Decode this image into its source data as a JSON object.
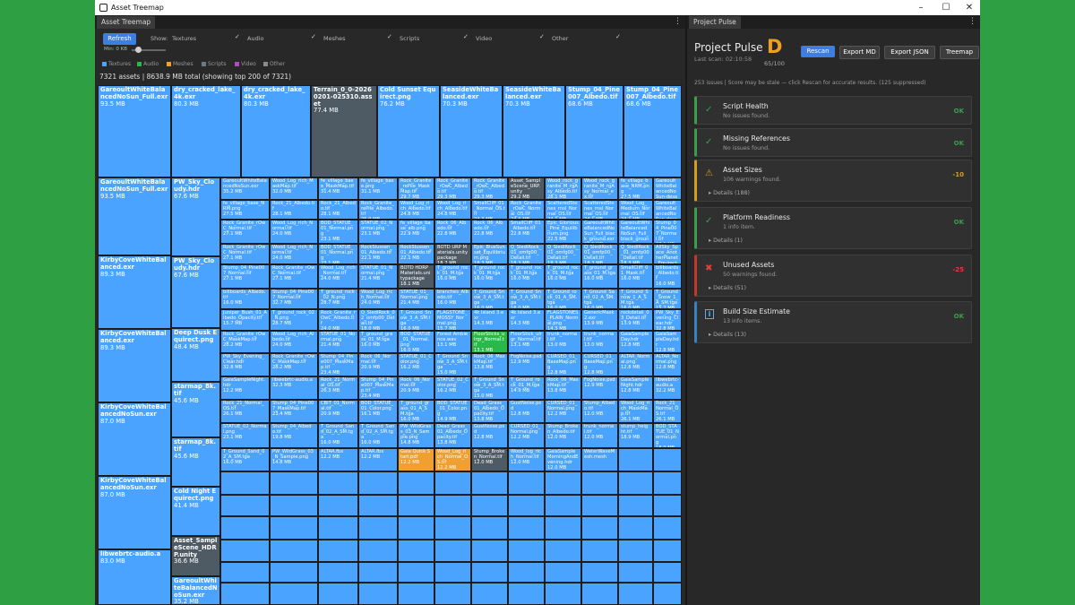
{
  "window": {
    "title": "Asset Treemap"
  },
  "left": {
    "tab": "Asset Treemap",
    "refresh": "Refresh",
    "show_label": "Show:",
    "filters": [
      "Textures",
      "Audio",
      "Meshes",
      "Scripts",
      "Video",
      "Other"
    ],
    "min_label": "Min: 0 KB",
    "legend": [
      {
        "name": "Textures",
        "color": "#4aa3ff"
      },
      {
        "name": "Audio",
        "color": "#2bb84a"
      },
      {
        "name": "Meshes",
        "color": "#f0a030"
      },
      {
        "name": "Scripts",
        "color": "#6b7a8a"
      },
      {
        "name": "Video",
        "color": "#b04ac0"
      },
      {
        "name": "Other",
        "color": "#8a8a8a"
      }
    ],
    "summary": "7321 assets | 8638.9 MB total (showing top 200 of 7321)"
  },
  "colors": {
    "tex": "#4aa3ff",
    "aud": "#2bb84a",
    "mesh": "#f0a030",
    "script": "#4e5a64"
  },
  "treemap": {
    "big": [
      [
        "GareoultWhiteBalancedNoSun_Full.exr",
        "93.5 MB"
      ],
      [
        "dry_cracked_lake_4k.exr",
        "80.3 MB"
      ],
      [
        "dry_cracked_lake_4k.exr",
        "80.3 MB"
      ],
      [
        "Terrain_0_0-20260201-025310.asset",
        "77.4 MB"
      ],
      [
        "Cold Sunset Equirect.png",
        "76.2 MB"
      ],
      [
        "SeasideWhiteBalanced.exr",
        "70.3 MB"
      ],
      [
        "SeasideWhiteBalanced.exr",
        "70.3 MB"
      ],
      [
        "Stump_04_Pine007_Albedo.tif",
        "68.6 MB"
      ],
      [
        "Stump_04_Pine007_Albedo.tif",
        "68.6 MB"
      ],
      [
        "GareoultWhiteBalancedNoSun_Full.exr",
        "93.5 MB"
      ],
      [
        "PW_Sky_Cloudy.hdr",
        "67.6 MB"
      ],
      [
        "KirbyCoveWhiteBalanced.exr",
        "89.3 MB"
      ],
      [
        "PW_Sky_Cloudy.hdr",
        "67.6 MB"
      ],
      [
        "KirbyCoveWhiteBalanced.exr",
        "89.3 MB"
      ],
      [
        "Deep Dusk Equirect.png",
        "48.4 MB"
      ],
      [
        "starmap_8k.tif",
        "45.6 MB"
      ],
      [
        "KirbyCoveWhiteBalancedNoSun.exr",
        "87.0 MB"
      ],
      [
        "starmap_8k.tif",
        "45.6 MB"
      ],
      [
        "KirbyCoveWhiteBalancedNoSun.exr",
        "87.0 MB"
      ],
      [
        "Cold Night Equirect.png",
        "41.4 MB"
      ],
      [
        "libwebrtc-audio.a",
        "83.0 MB"
      ],
      [
        "Asset_SampleScene_HDRP.unity",
        "36.6 MB"
      ],
      [
        "GareoultWhiteBalancedNoSun.exr",
        "35.2 MB"
      ]
    ],
    "small": [
      [
        "GareoultWhiteBalancedNoSun.exr",
        "35.2 MB"
      ],
      [
        "Wood_Log_rich_MaskMap.tif",
        "32.0 MB"
      ],
      [
        "fe_village_base_MaskMap.tif",
        "31.4 MB"
      ],
      [
        "fe_village_base.png",
        "31.1 MB"
      ],
      [
        "Rock_Granite_rePile_MaskMap.tif",
        "29.7 MB"
      ],
      [
        "Rock_Granite_rOwC_Albedo.tif",
        "29.3 MB"
      ],
      [
        "Rock_Granite_rOwC_Albedo.tif",
        "29.3 MB"
      ],
      [
        "Asset_SampleScene_URP.unity",
        "29.2 MB"
      ],
      [
        "Wood_rock_granite_M_rgAsy_Albedo.tif",
        "28.1 MB"
      ],
      [
        "Wood_rock_granite_M_rgAsy_Normal_ex.tif",
        "27.9 MB"
      ],
      [
        "fe_village_base_NRM.png",
        "27.5 MB"
      ],
      [
        "GareoultWhiteBalancedNoSun-desaturated.exr",
        "34.5 MB"
      ],
      [
        "fe_village_base_NRM.png",
        "27.5 MB"
      ],
      [
        "Rock_21_Albedo.tif",
        "28.1 MB"
      ],
      [
        "Rock_21_Albedo.tif",
        "28.1 MB"
      ],
      [
        "Rock_Granite_rePile_Albedo.tif",
        "25.9 MB"
      ],
      [
        "Wood_Log_rich_Albedo.tif",
        "24.8 MB"
      ],
      [
        "Wood_Log_rich_Albedo.tif",
        "24.8 MB"
      ],
      [
        "SmallCliff_01_Normal_OS.tif",
        "24.3 MB"
      ],
      [
        "Rock_Granite_rOwC_Normal_OS.tif",
        "24.3 MB"
      ],
      [
        "ScatteredStones_rnsl_Normal_OS.tif",
        "24.1 MB"
      ],
      [
        "ScatteredStones_rnsl_Normal_OS.tif",
        "24.1 MB"
      ],
      [
        "Wood_Log_Medium_Normal_OS.tif",
        "24.1 MB"
      ],
      [
        "GareoultWhiteBalancedNoSun-desaturated.exr",
        "34.5 MB"
      ],
      [
        "Rock_Granite_rOwC_Normal.tif",
        "27.1 MB"
      ],
      [
        "Wood_Log_rich_Normal.tif",
        "24.0 MB"
      ],
      [
        "BOD_STATUE_01_Normal.png",
        "23.1 MB"
      ],
      [
        "STATUE_02_Normal.png",
        "23.1 MB"
      ],
      [
        "fe_village_base_alb.png",
        "22.9 MB"
      ],
      [
        "Rock_06_Albedo.tif",
        "22.8 MB"
      ],
      [
        "Rock_06_Albedo.tif",
        "22.8 MB"
      ],
      [
        "SmallCliff_01_Albedo.tif",
        "22.8 MB"
      ],
      [
        "Epic_Glorious_Pine_Equilibrium.png",
        "22.5 MB"
      ],
      [
        "GareoultWhiteBalancedNoSun_Full_black_ground.exr",
        "22.5 MB"
      ],
      [
        "GareoultWhiteBalancedNoSun_Full_black_ground.exr",
        "22.5 MB"
      ],
      [
        "Stump_04_Pine007_Normal.tif",
        "27.1 MB"
      ],
      [
        "Rock_Granite_rOwC_Normal.tif",
        "27.1 MB"
      ],
      [
        "Wood_Log_rich_Normal.tif",
        "24.0 MB"
      ],
      [
        "BOD_STATUE_01_Normal.png",
        "23.1 MB"
      ],
      [
        "RockSlussen_01_Albedo.tif",
        "22.1 MB"
      ],
      [
        "RockSlussen_01_Albedo.tif",
        "22.1 MB"
      ],
      [
        "BOTD URP Materials.unitypackage",
        "18.7 MB"
      ],
      [
        "Epic_BlueSunset_Equilibrium.png",
        "18.3 MB"
      ],
      [
        "Q_SlediRock_01_omfg00_Detail.tif",
        "18.3 MB"
      ],
      [
        "Q_SlediRock_01_omfg00_Detail.tif",
        "18.3 MB"
      ],
      [
        "Q_SlediRock_01_omfp00_Detail.tif",
        "18.3 MB"
      ],
      [
        "Q_SlediRock_01_omfp00_Detail.tif",
        "18.3 MB"
      ],
      [
        "AllSky_Space_AnotherPlanet_Equirect.png",
        "18.3 MB"
      ],
      [
        "Stump_04_Pine007_Normal.tif",
        "27.1 MB"
      ],
      [
        "Rock_Granite_rOwC_Normal.tif",
        "27.1 MB"
      ],
      [
        "Wood_Log_rich_Normal.tif",
        "24.0 MB"
      ],
      [
        "STATUE_01_Normal.png",
        "21.4 MB"
      ],
      [
        "BOTD HDRP Materials.unitypackage",
        "18.1 MB"
      ],
      [
        "T_ground_rock_01_M.tga",
        "16.0 MB"
      ],
      [
        "T_ground_rock_01_M.tga",
        "16.0 MB"
      ],
      [
        "T_ground_rock_01_M.tga",
        "16.0 MB"
      ],
      [
        "T_ground_rock_01_M.tga",
        "16.0 MB"
      ],
      [
        "T_ground_grass_01_M.tga",
        "16.0 MB"
      ],
      [
        "SmallCliff_01_Mask.tif",
        "16.0 MB"
      ],
      [
        "billboards_Albedo.tif",
        "16.0 MB"
      ],
      [
        "billboards_Albedo.tif",
        "16.0 MB"
      ],
      [
        "Stump_04_Pine007_Normal.tif",
        "32.7 MB"
      ],
      [
        "T_ground_rock_02_N.png",
        "28.7 MB"
      ],
      [
        "Wood_Log_rich_Normal.tif",
        "24.0 MB"
      ],
      [
        "STATUE_01_Normal.png",
        "21.4 MB"
      ],
      [
        "branches_Albedo.tif",
        "16.0 MB"
      ],
      [
        "T_Ground_Snow_3_A_SM.tga",
        "16.0 MB"
      ],
      [
        "T_Ground_Snow_3_A_SM.tga",
        "16.0 MB"
      ],
      [
        "T_Ground_rock_01_A_SM.tga",
        "16.0 MB"
      ],
      [
        "T_Ground_Sand_02_A_SM.tga",
        "16.0 MB"
      ],
      [
        "T_Ground_Snow_1_A_SM.tga",
        "16.0 MB"
      ],
      [
        "T_Ground_Snow_1_A_SM.tga",
        "15.7 MB"
      ],
      [
        "Juniper_Bush_01_Albedo_Opacity.tif",
        "15.7 MB"
      ],
      [
        "T_ground_rock_02_N.png",
        "28.7 MB"
      ],
      [
        "Rock_Granite_rOwC_Albedo.tif",
        "24.0 MB"
      ],
      [
        "Q_SlediRock_02_omfp00_Detail.tif",
        "18.0 MB"
      ],
      [
        "T_Ground_Snow_3_A_SM.tga",
        "16.0 MB"
      ],
      [
        "FLAGSTONE_MOSSY_Normal.png",
        "15.7 MB"
      ],
      [
        "4k Island 3.exr",
        "14.3 MB"
      ],
      [
        "4k Island 3.exr",
        "14.3 MB"
      ],
      [
        "FLAGSTONES_PLAIN_Normal.png",
        "14.3 MB"
      ],
      [
        "GenericMask2.exr",
        "13.9 MB"
      ],
      [
        "rockdetail_03_Detail.tif",
        "13.9 MB"
      ],
      [
        "PW_Sky_Evening_Clear.hdr",
        "32.8 MB"
      ],
      [
        "Rock_Granite_rOwC_MaskMap.tif",
        "28.2 MB"
      ],
      [
        "Wood_Log_rich_Albedo.tif",
        "24.0 MB"
      ],
      [
        "STATUE_01_Normal.png",
        "21.4 MB"
      ],
      [
        "T_ground_grass_01_M.tga",
        "16.0 MB"
      ],
      [
        "BOD_STATUE_01_Normal.png",
        "16.0 MB"
      ],
      [
        "Forest Ambience.wav",
        "13.1 MB"
      ],
      [
        "FloorSticks_ulrgr_Normal.tif",
        "13.1 MB"
      ],
      [
        "FloorStick_ulrgr_Normal.tif",
        "13.1 MB"
      ],
      [
        "trunk_normal.tif",
        "13.0 MB"
      ],
      [
        "trunk_normal.tif",
        "13.0 MB"
      ],
      [
        "GaiaSampleDay.hdr",
        "12.8 MB"
      ],
      [
        "GaiaSampleDay.hdr",
        "12.8 MB"
      ],
      [
        "PW_Sky_Evening_Clear.hdr",
        "32.8 MB"
      ],
      [
        "Rock_Granite_rOwC_MaskMap.tif",
        "28.2 MB"
      ],
      [
        "Stump_04_Pine007_MaskMap.tif",
        "23.4 MB"
      ],
      [
        "Rock_06_Normal.tif",
        "20.9 MB"
      ],
      [
        "STATUE_01_Color.png",
        "16.2 MB"
      ],
      [
        "T_Ground_Snow_3_A_SM.tga",
        "15.0 MB"
      ],
      [
        "Rock_06_MaskMap.tif",
        "13.8 MB"
      ],
      [
        "FogNoise.psd",
        "12.9 MB"
      ],
      [
        "CURSED_01_BaseMap.png",
        "12.8 MB"
      ],
      [
        "CURSED_01_BaseMap.png",
        "12.8 MB"
      ],
      [
        "ALTAR_Normal.png",
        "12.8 MB"
      ],
      [
        "ALTAR_Normal.png",
        "12.8 MB"
      ],
      [
        "GaiaSampleNight.hdr",
        "12.2 MB"
      ],
      [
        "libwebrtc-audio.a",
        "32.3 MB"
      ],
      [
        "Rock_21_Normal_OS.tif",
        "26.3 MB"
      ],
      [
        "Stump_04_Pine007_MaskMap.tif",
        "23.4 MB"
      ],
      [
        "Rock_06_Normal.tif",
        "20.9 MB"
      ],
      [
        "STATUE_02_Color.png",
        "16.2 MB"
      ],
      [
        "T_Ground_Snow_3_A_SM.tga",
        "15.0 MB"
      ],
      [
        "T_Ground_rock_01_M.tga",
        "14.9 MB"
      ],
      [
        "Rock_06_MaskMap.tif",
        "13.8 MB"
      ],
      [
        "FogNoise.psd",
        "12.9 MB"
      ],
      [
        "GaiaSampleNight.hdr",
        "12.8 MB"
      ],
      [
        "libwebrtc-audio.a",
        "32.2 MB"
      ],
      [
        "Rock_21_Normal_OS.tif",
        "26.1 MB"
      ],
      [
        "Stump_04_Pine007_MaskMap.tif",
        "23.4 MB"
      ],
      [
        "CBIT_01_Normal.tif",
        "20.9 MB"
      ],
      [
        "BOD_STATUE_01_Color.png",
        "16.1 MB"
      ],
      [
        "T_ground_grass_01_A_SM.tga",
        "16.0 MB"
      ],
      [
        "BOD_STATUE_01_Color.png",
        "14.9 MB"
      ],
      [
        "Dead_Grass_01_Albedo_Opacity.tif",
        "13.8 MB"
      ],
      [
        "GustNoise.psd",
        "12.8 MB"
      ],
      [
        "CURSED_01_Normal.png",
        "12.2 MB"
      ],
      [
        "Stump_Albedo.tif",
        "12.0 MB"
      ],
      [
        "Wood_Log_rich_MaskMap.tif",
        "26.1 MB"
      ],
      [
        "Rock_21_Normal_OS.tif",
        "26.1 MB"
      ],
      [
        "STATUE_02_Normal.png",
        "23.1 MB"
      ],
      [
        "Stump_04_Albedo.tif",
        "19.8 MB"
      ],
      [
        "T_Ground_Sand_02_A_SM.tga",
        "16.0 MB"
      ],
      [
        "T_Ground_Sand_02_A_SM.tga",
        "16.0 MB"
      ],
      [
        "PW_WildGrass_03_N_Sample.png",
        "14.8 MB"
      ],
      [
        "Dead_Grass_01_Albedo_Opacity.tif",
        "13.8 MB"
      ],
      [
        "GustNoise.psd",
        "12.8 MB"
      ],
      [
        "CURSED_01_Normal.png",
        "12.2 MB"
      ],
      [
        "Stump_Broken_Albedo.tif",
        "12.0 MB"
      ],
      [
        "trunk_normal.tif",
        "12.0 MB"
      ],
      [
        "stump_height.tif",
        "18.9 MB"
      ],
      [
        "BOD_STATUE_01_Normal.png",
        "18.9 MB"
      ],
      [
        "T_Ground_Sand_02_A_SM.tga",
        "16.0 MB"
      ],
      [
        "PW_WildGrass_03_N_Sample.png",
        "14.8 MB"
      ],
      [
        "ALTAR.fbx",
        "12.2 MB"
      ],
      [
        "ALTAR.fbx",
        "12.2 MB"
      ],
      [
        "Gaia Quick Start.pdf",
        "12.2 MB"
      ],
      [
        "Wood_Log_rich_Normal_OS.tif",
        "12.2 MB"
      ],
      [
        "Stump_Broken_Normal.tif",
        "12.0 MB"
      ],
      [
        "Wood_log_rich_Normal.tif",
        "12.0 MB"
      ],
      [
        "GaiaSampleMorningAndEvening.hdr",
        "12.0 MB"
      ],
      [
        "WaterWaveMesh.mesh",
        ""
      ]
    ]
  },
  "right": {
    "tab": "Project Pulse",
    "title": "Project Pulse",
    "last_scan": "Last scan: 02:10:58",
    "grade": "D",
    "score": "65/100",
    "buttons": [
      "Rescan",
      "Export MD",
      "Export JSON",
      "Treemap"
    ],
    "summary": "253 issues | Score may be stale — click Rescan for accurate results. (125 suppressed)",
    "cards": [
      {
        "title": "Script Health",
        "sub": "No issues found.",
        "value": "OK",
        "details": "",
        "icon": "✓",
        "color": "#3b9e4d"
      },
      {
        "title": "Missing References",
        "sub": "No issues found.",
        "value": "OK",
        "details": "",
        "icon": "✓",
        "color": "#3b9e4d"
      },
      {
        "title": "Asset Sizes",
        "sub": "106 warnings found.",
        "value": "-10",
        "details": "Details (188)",
        "icon": "⚠",
        "color": "#d4a017"
      },
      {
        "title": "Platform Readiness",
        "sub": "1 info item.",
        "value": "OK",
        "details": "Details (1)",
        "icon": "✓",
        "color": "#3b9e4d"
      },
      {
        "title": "Unused Assets",
        "sub": "50 warnings found.",
        "value": "-25",
        "details": "Details (51)",
        "icon": "✖",
        "color": "#c0392b"
      },
      {
        "title": "Build Size Estimate",
        "sub": "13 info items.",
        "value": "OK",
        "details": "Details (13)",
        "icon": "i",
        "color": "#3b80c0"
      }
    ]
  }
}
